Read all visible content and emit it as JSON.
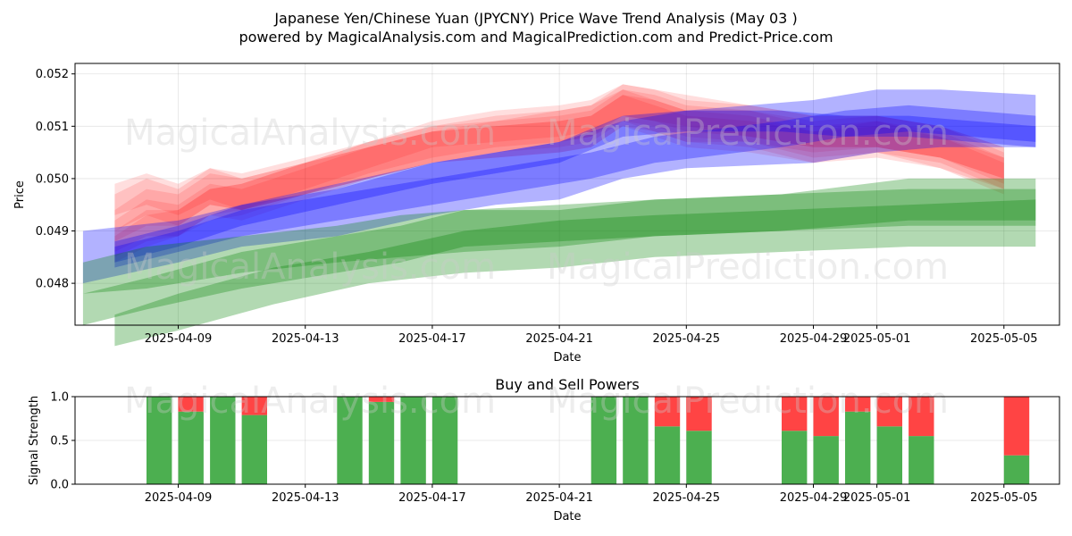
{
  "title": "Japanese Yen/Chinese Yuan (JPYCNY) Price Wave Trend Analysis (May 03 )",
  "subtitle": "powered by MagicalAnalysis.com and MagicalPrediction.com and Predict-Price.com",
  "watermarks": [
    "MagicalAnalysis.com",
    "MagicalPrediction.com"
  ],
  "colors": {
    "red": "#ff0000",
    "blue": "#0000ff",
    "green": "#008000",
    "buy": "#4caf50",
    "sell": "#ff4444"
  },
  "chart_data": [
    {
      "type": "area",
      "name": "price-wave",
      "xlabel": "Date",
      "ylabel": "Price",
      "ylim": [
        0.0472,
        0.0522
      ],
      "xlim": [
        "2025-04-05T18:00",
        "2025-05-06T18:00"
      ],
      "yticks": [
        0.048,
        0.049,
        0.05,
        0.051,
        0.052
      ],
      "yticklabels": [
        "0.048",
        "0.049",
        "0.050",
        "0.051",
        "0.052"
      ],
      "xticks": [
        "2025-04-09",
        "2025-04-13",
        "2025-04-17",
        "2025-04-21",
        "2025-04-25",
        "2025-04-29",
        "2025-05-01",
        "2025-05-05"
      ],
      "grid": true,
      "bands": [
        {
          "color": "red",
          "opacity": 0.13,
          "dates": [
            "2025-04-07",
            "2025-04-08",
            "2025-04-09",
            "2025-04-10",
            "2025-04-11",
            "2025-04-13",
            "2025-04-15",
            "2025-04-17",
            "2025-04-19",
            "2025-04-21",
            "2025-04-22",
            "2025-04-23",
            "2025-04-24",
            "2025-04-25",
            "2025-04-27",
            "2025-04-29",
            "2025-05-01",
            "2025-05-03",
            "2025-05-05"
          ],
          "upper": [
            0.0497,
            0.05,
            0.0498,
            0.0502,
            0.0501,
            0.0504,
            0.0507,
            0.051,
            0.0511,
            0.0512,
            0.0513,
            0.0517,
            0.0515,
            0.0513,
            0.0513,
            0.051,
            0.0511,
            0.0508,
            0.0503
          ],
          "lower": [
            0.049,
            0.0493,
            0.0491,
            0.0495,
            0.0494,
            0.0497,
            0.05,
            0.0503,
            0.0505,
            0.0506,
            0.0507,
            0.0511,
            0.0509,
            0.0507,
            0.0507,
            0.0504,
            0.0505,
            0.0502,
            0.0497
          ]
        },
        {
          "color": "red",
          "opacity": 0.13,
          "dates": [
            "2025-04-07",
            "2025-04-08",
            "2025-04-09",
            "2025-04-10",
            "2025-04-11",
            "2025-04-13",
            "2025-04-15",
            "2025-04-17",
            "2025-04-19",
            "2025-04-21",
            "2025-04-22",
            "2025-04-23",
            "2025-04-24",
            "2025-04-25",
            "2025-04-27",
            "2025-04-29",
            "2025-05-01",
            "2025-05-03",
            "2025-05-05"
          ],
          "upper": [
            0.0492,
            0.0496,
            0.0495,
            0.0499,
            0.0498,
            0.0502,
            0.0506,
            0.0509,
            0.0511,
            0.0513,
            0.0514,
            0.0518,
            0.0517,
            0.0516,
            0.0514,
            0.0512,
            0.0512,
            0.051,
            0.0506
          ],
          "lower": [
            0.0486,
            0.0489,
            0.0489,
            0.0493,
            0.0492,
            0.0496,
            0.05,
            0.0503,
            0.0505,
            0.0507,
            0.0508,
            0.0512,
            0.0511,
            0.051,
            0.0508,
            0.0506,
            0.0506,
            0.0504,
            0.05
          ]
        },
        {
          "color": "red",
          "opacity": 0.13,
          "dates": [
            "2025-04-07",
            "2025-04-08",
            "2025-04-09",
            "2025-04-10",
            "2025-04-11",
            "2025-04-13",
            "2025-04-15",
            "2025-04-17",
            "2025-04-19",
            "2025-04-21",
            "2025-04-22",
            "2025-04-23",
            "2025-04-24",
            "2025-04-25",
            "2025-04-27",
            "2025-04-29",
            "2025-05-01",
            "2025-05-03",
            "2025-05-05"
          ],
          "upper": [
            0.0489,
            0.0493,
            0.0494,
            0.0498,
            0.0499,
            0.0503,
            0.0507,
            0.051,
            0.0512,
            0.0513,
            0.0514,
            0.0517,
            0.0516,
            0.0514,
            0.0513,
            0.0511,
            0.0512,
            0.051,
            0.0505
          ],
          "lower": [
            0.0484,
            0.0487,
            0.0489,
            0.0492,
            0.0493,
            0.0497,
            0.0501,
            0.0504,
            0.0506,
            0.0507,
            0.0508,
            0.0511,
            0.051,
            0.0508,
            0.0507,
            0.0505,
            0.0506,
            0.0504,
            0.0499
          ]
        },
        {
          "color": "red",
          "opacity": 0.13,
          "dates": [
            "2025-04-07",
            "2025-04-08",
            "2025-04-09",
            "2025-04-10",
            "2025-04-11",
            "2025-04-13",
            "2025-04-15",
            "2025-04-17",
            "2025-04-19",
            "2025-04-21",
            "2025-04-22",
            "2025-04-23",
            "2025-04-24",
            "2025-04-25",
            "2025-04-27",
            "2025-04-29",
            "2025-05-01",
            "2025-05-03",
            "2025-05-05"
          ],
          "upper": [
            0.0494,
            0.0498,
            0.0497,
            0.0501,
            0.05,
            0.0503,
            0.0506,
            0.0509,
            0.051,
            0.0511,
            0.0512,
            0.0516,
            0.0515,
            0.0513,
            0.0512,
            0.0509,
            0.0511,
            0.0509,
            0.0504
          ],
          "lower": [
            0.0488,
            0.0491,
            0.0491,
            0.0495,
            0.0494,
            0.0497,
            0.05,
            0.0503,
            0.0504,
            0.0505,
            0.0506,
            0.051,
            0.0509,
            0.0507,
            0.0506,
            0.0503,
            0.0505,
            0.0503,
            0.0498
          ]
        },
        {
          "color": "red",
          "opacity": 0.13,
          "dates": [
            "2025-04-07",
            "2025-04-08",
            "2025-04-09",
            "2025-04-10",
            "2025-04-11",
            "2025-04-13",
            "2025-04-15",
            "2025-04-17",
            "2025-04-19",
            "2025-04-21",
            "2025-04-22",
            "2025-04-23",
            "2025-04-24",
            "2025-04-25",
            "2025-04-27",
            "2025-04-29",
            "2025-05-01",
            "2025-05-03",
            "2025-05-05"
          ],
          "upper": [
            0.0499,
            0.0501,
            0.0499,
            0.0502,
            0.05,
            0.0503,
            0.0506,
            0.0509,
            0.051,
            0.0511,
            0.0512,
            0.0516,
            0.0514,
            0.0512,
            0.0511,
            0.0509,
            0.051,
            0.0508,
            0.0504
          ],
          "lower": [
            0.0493,
            0.0495,
            0.0493,
            0.0496,
            0.0494,
            0.0497,
            0.05,
            0.0503,
            0.0504,
            0.0505,
            0.0506,
            0.051,
            0.0508,
            0.0506,
            0.0505,
            0.0503,
            0.0504,
            0.0502,
            0.0498
          ]
        },
        {
          "color": "red",
          "opacity": 0.13,
          "dates": [
            "2025-04-07",
            "2025-04-08",
            "2025-04-09",
            "2025-04-10",
            "2025-04-11",
            "2025-04-13",
            "2025-04-15",
            "2025-04-17",
            "2025-04-19",
            "2025-04-21",
            "2025-04-22",
            "2025-04-23",
            "2025-04-24",
            "2025-04-25",
            "2025-04-27",
            "2025-04-29",
            "2025-05-01",
            "2025-05-03",
            "2025-05-05"
          ],
          "upper": [
            0.049,
            0.0494,
            0.0494,
            0.0498,
            0.0499,
            0.0503,
            0.0507,
            0.0511,
            0.0513,
            0.0514,
            0.0515,
            0.0518,
            0.0517,
            0.0515,
            0.0514,
            0.0512,
            0.0512,
            0.051,
            0.0506
          ],
          "lower": [
            0.0485,
            0.0488,
            0.0489,
            0.0493,
            0.0494,
            0.0498,
            0.0502,
            0.0506,
            0.0507,
            0.0508,
            0.0509,
            0.0512,
            0.0511,
            0.0509,
            0.0508,
            0.0506,
            0.0506,
            0.0504,
            0.05
          ]
        },
        {
          "color": "blue",
          "opacity": 0.3,
          "dates": [
            "2025-04-06",
            "2025-04-09",
            "2025-04-11",
            "2025-04-14",
            "2025-04-17",
            "2025-04-19",
            "2025-04-21",
            "2025-04-23",
            "2025-04-25",
            "2025-04-29",
            "2025-05-01",
            "2025-05-03",
            "2025-05-06"
          ],
          "upper": [
            0.049,
            0.0492,
            0.0495,
            0.0498,
            0.0503,
            0.0505,
            0.0507,
            0.0511,
            0.0513,
            0.0515,
            0.0517,
            0.0517,
            0.0516
          ],
          "lower": [
            0.048,
            0.0484,
            0.0487,
            0.0489,
            0.0493,
            0.0495,
            0.0496,
            0.05,
            0.0502,
            0.0503,
            0.0505,
            0.0506,
            0.0506
          ]
        },
        {
          "color": "blue",
          "opacity": 0.3,
          "dates": [
            "2025-04-07",
            "2025-04-09",
            "2025-04-11",
            "2025-04-14",
            "2025-04-17",
            "2025-04-21",
            "2025-04-22",
            "2025-04-24",
            "2025-04-28",
            "2025-04-30",
            "2025-05-02",
            "2025-05-04",
            "2025-05-06"
          ],
          "upper": [
            0.0487,
            0.049,
            0.0494,
            0.0497,
            0.05,
            0.0504,
            0.0505,
            0.0508,
            0.0511,
            0.0513,
            0.0514,
            0.0513,
            0.0512
          ],
          "lower": [
            0.0483,
            0.0486,
            0.0489,
            0.0492,
            0.0495,
            0.0499,
            0.05,
            0.0503,
            0.0506,
            0.0508,
            0.0509,
            0.0508,
            0.0507
          ]
        },
        {
          "color": "blue",
          "opacity": 0.3,
          "dates": [
            "2025-04-07",
            "2025-04-09",
            "2025-04-11",
            "2025-04-14",
            "2025-04-17",
            "2025-04-21",
            "2025-04-23",
            "2025-04-25",
            "2025-04-28",
            "2025-04-30",
            "2025-05-02",
            "2025-05-04",
            "2025-05-06"
          ],
          "upper": [
            0.0488,
            0.0491,
            0.0495,
            0.0499,
            0.0503,
            0.0507,
            0.0512,
            0.0513,
            0.0513,
            0.0512,
            0.0512,
            0.0511,
            0.051
          ],
          "lower": [
            0.0484,
            0.0487,
            0.0491,
            0.0495,
            0.0499,
            0.0503,
            0.0508,
            0.0509,
            0.0509,
            0.0508,
            0.0508,
            0.0507,
            0.0506
          ]
        },
        {
          "color": "green",
          "opacity": 0.3,
          "dates": [
            "2025-04-06",
            "2025-04-08",
            "2025-04-11",
            "2025-04-14",
            "2025-04-16",
            "2025-04-18",
            "2025-04-21",
            "2025-04-24",
            "2025-04-28",
            "2025-05-02",
            "2025-05-06"
          ],
          "upper": [
            0.0484,
            0.0487,
            0.0489,
            0.0491,
            0.0493,
            0.0494,
            0.0494,
            0.0496,
            0.0497,
            0.05,
            0.05
          ],
          "lower": [
            0.0478,
            0.0479,
            0.0482,
            0.0484,
            0.0485,
            0.0486,
            0.0487,
            0.0489,
            0.049,
            0.0492,
            0.0492
          ]
        },
        {
          "color": "green",
          "opacity": 0.3,
          "dates": [
            "2025-04-06",
            "2025-04-08",
            "2025-04-11",
            "2025-04-14",
            "2025-04-16",
            "2025-04-18",
            "2025-04-21",
            "2025-04-24",
            "2025-04-28",
            "2025-05-02",
            "2025-05-06"
          ],
          "upper": [
            0.0478,
            0.0481,
            0.0486,
            0.0489,
            0.0491,
            0.0494,
            0.0495,
            0.0496,
            0.0497,
            0.0498,
            0.0498
          ],
          "lower": [
            0.0472,
            0.0475,
            0.0479,
            0.0482,
            0.0484,
            0.0487,
            0.0488,
            0.0489,
            0.049,
            0.0491,
            0.0491
          ]
        },
        {
          "color": "green",
          "opacity": 0.3,
          "dates": [
            "2025-04-07",
            "2025-04-09",
            "2025-04-12",
            "2025-04-15",
            "2025-04-18",
            "2025-04-21",
            "2025-04-24",
            "2025-04-28",
            "2025-05-02",
            "2025-05-06"
          ],
          "upper": [
            0.0474,
            0.0478,
            0.0483,
            0.0486,
            0.049,
            0.0492,
            0.0493,
            0.0494,
            0.0495,
            0.0496
          ],
          "lower": [
            0.0468,
            0.0471,
            0.0476,
            0.048,
            0.0482,
            0.0483,
            0.0485,
            0.0486,
            0.0487,
            0.0487
          ]
        }
      ]
    },
    {
      "type": "bar",
      "name": "buy-sell-powers",
      "title": "Buy and Sell Powers",
      "xlabel": "Date",
      "ylabel": "Signal Strength",
      "ylim": [
        0,
        1
      ],
      "yticks": [
        0.0,
        0.5,
        1.0
      ],
      "yticklabels": [
        "0.0",
        "0.5",
        "1.0"
      ],
      "xticks": [
        "2025-04-09",
        "2025-04-13",
        "2025-04-17",
        "2025-04-21",
        "2025-04-25",
        "2025-04-29",
        "2025-05-01",
        "2025-05-05"
      ],
      "grid": true,
      "series": [
        {
          "name": "Buy",
          "color": "buy"
        },
        {
          "name": "Sell",
          "color": "sell"
        }
      ],
      "bars": [
        {
          "date": "2025-04-08",
          "buy": 1.0
        },
        {
          "date": "2025-04-09",
          "buy": 0.83
        },
        {
          "date": "2025-04-10",
          "buy": 1.0
        },
        {
          "date": "2025-04-11",
          "buy": 0.79
        },
        {
          "date": "2025-04-14",
          "buy": 1.0
        },
        {
          "date": "2025-04-15",
          "buy": 0.94
        },
        {
          "date": "2025-04-16",
          "buy": 1.0
        },
        {
          "date": "2025-04-17",
          "buy": 1.0
        },
        {
          "date": "2025-04-22",
          "buy": 1.0
        },
        {
          "date": "2025-04-23",
          "buy": 1.0
        },
        {
          "date": "2025-04-24",
          "buy": 0.66
        },
        {
          "date": "2025-04-25",
          "buy": 0.61
        },
        {
          "date": "2025-04-28",
          "buy": 0.61
        },
        {
          "date": "2025-04-29",
          "buy": 0.55
        },
        {
          "date": "2025-04-30",
          "buy": 0.83
        },
        {
          "date": "2025-05-01",
          "buy": 0.66
        },
        {
          "date": "2025-05-02",
          "buy": 0.55
        },
        {
          "date": "2025-05-05",
          "buy": 0.33
        }
      ]
    }
  ]
}
